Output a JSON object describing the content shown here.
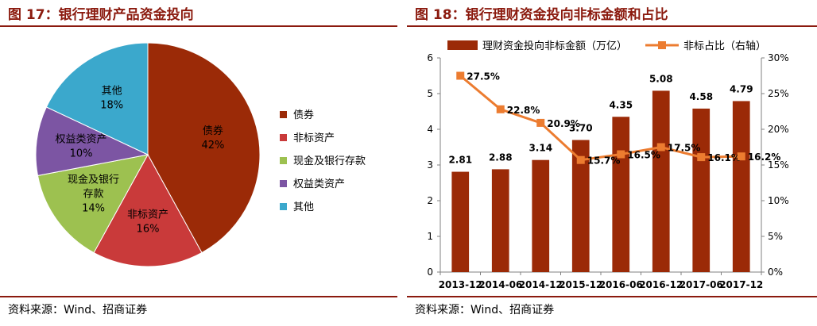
{
  "left": {
    "title": "图 17：银行理财产品资金投向",
    "source": "资料来源：Wind、招商证券"
  },
  "right": {
    "title": "图 18：银行理财资金投向非标金额和占比",
    "source": "资料来源：Wind、招商证券"
  },
  "colors": {
    "accent": "#8b1a0e",
    "bar": "#9b2a07",
    "line": "#ec7c30"
  },
  "chart_data": [
    {
      "type": "pie",
      "title": "银行理财产品资金投向",
      "labels": [
        "债券",
        "非标资产",
        "现金及银行存款",
        "权益类资产",
        "其他"
      ],
      "values": [
        42,
        16,
        14,
        10,
        18
      ],
      "value_labels": [
        "42%",
        "16%",
        "14%",
        "10%",
        "18%"
      ],
      "slice_labels": [
        "债券",
        "非标资产",
        "现金及银行\n存款",
        "权益类资产",
        "其他"
      ],
      "colors": [
        "#9b2a07",
        "#c93a3a",
        "#9dc150",
        "#7c55a3",
        "#3ba8cc"
      ],
      "legend_position": "right"
    },
    {
      "type": "bar",
      "title": "银行理财资金投向非标金额和占比",
      "categories": [
        "2013-12",
        "2014-06",
        "2014-12",
        "2015-12",
        "2016-06",
        "2016-12",
        "2017-06",
        "2017-12"
      ],
      "series": [
        {
          "name": "理财资金投向非标金额（万亿）",
          "type": "bar",
          "axis": "left",
          "values": [
            2.81,
            2.88,
            3.14,
            3.7,
            4.35,
            5.08,
            4.58,
            4.79
          ],
          "labels": [
            "2.81",
            "2.88",
            "3.14",
            "3.70",
            "4.35",
            "5.08",
            "4.58",
            "4.79"
          ]
        },
        {
          "name": "非标占比（右轴）",
          "type": "line",
          "axis": "right",
          "values": [
            27.5,
            22.8,
            20.9,
            15.7,
            16.5,
            17.5,
            16.1,
            16.2
          ],
          "labels": [
            "27.5%",
            "22.8%",
            "20.9%",
            "15.7%",
            "16.5%",
            "17.5%",
            "16.1%",
            "16.2%"
          ]
        }
      ],
      "ylim": [
        0,
        6
      ],
      "yticks": [
        "0",
        "1",
        "2",
        "3",
        "4",
        "5",
        "6"
      ],
      "y2lim": [
        0,
        30
      ],
      "y2ticks": [
        "0%",
        "5%",
        "10%",
        "15%",
        "20%",
        "25%",
        "30%"
      ],
      "legend_position": "top",
      "grid": false
    }
  ]
}
